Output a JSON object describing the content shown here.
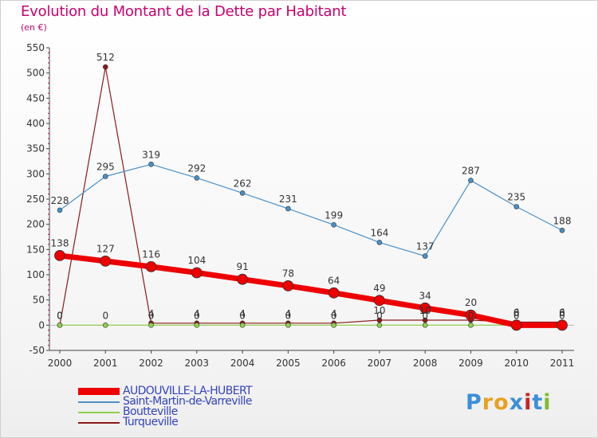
{
  "title": "Evolution du Montant de la Dette par Habitant",
  "subtitle": "(en €)",
  "logo": {
    "text": "Proxiti",
    "letter_colors": [
      "#3a8fd8",
      "#e8a020",
      "#e8a020",
      "#3a8fd8",
      "#cc2222",
      "#3a8fd8",
      "#7bbf2a"
    ]
  },
  "chart_data": {
    "type": "line",
    "title": "Evolution du Montant de la Dette par Habitant",
    "subtitle": "(en €)",
    "xlabel": "",
    "ylabel": "",
    "categories": [
      "2000",
      "2001",
      "2002",
      "2003",
      "2004",
      "2005",
      "2006",
      "2007",
      "2008",
      "2009",
      "2010",
      "2011"
    ],
    "ylim": [
      -50,
      550
    ],
    "yticks": [
      -50,
      0,
      50,
      100,
      150,
      200,
      250,
      300,
      350,
      400,
      450,
      500,
      550
    ],
    "grid": false,
    "legend_position": "bottom-left",
    "series": [
      {
        "name": "Turqueville",
        "color": "#8b1a1a",
        "values": [
          0,
          512,
          4,
          4,
          4,
          4,
          4,
          10,
          10,
          10,
          6,
          6
        ],
        "labels": [
          "0",
          "512",
          "4",
          "4",
          "4",
          "4",
          "4",
          "10",
          "10",
          "",
          "6",
          "6"
        ]
      },
      {
        "name": "Saint-Martin-de-Varreville",
        "color": "#4a90c8",
        "values": [
          228,
          295,
          319,
          292,
          262,
          231,
          199,
          164,
          137,
          287,
          235,
          188
        ],
        "labels": [
          "228",
          "295",
          "319",
          "292",
          "262",
          "231",
          "199",
          "164",
          "137",
          "287",
          "235",
          "188"
        ]
      },
      {
        "name": "Boutteville",
        "color": "#8ed14a",
        "values": [
          0,
          0,
          0,
          0,
          0,
          0,
          0,
          0,
          0,
          0,
          0,
          0
        ],
        "labels": [
          "0",
          "0",
          "0",
          "0",
          "0",
          "0",
          "0",
          "0",
          "0",
          "0",
          "0",
          "0"
        ]
      },
      {
        "name": "AUDOUVILLE-LA-HUBERT",
        "color": "#ee0000",
        "values": [
          138,
          127,
          116,
          104,
          91,
          78,
          64,
          49,
          34,
          20,
          0,
          0
        ],
        "labels": [
          "138",
          "127",
          "116",
          "104",
          "91",
          "78",
          "64",
          "49",
          "34",
          "20",
          "0",
          "0"
        ]
      }
    ],
    "legend_order": [
      "AUDOUVILLE-LA-HUBERT",
      "Saint-Martin-de-Varreville",
      "Boutteville",
      "Turqueville"
    ]
  }
}
